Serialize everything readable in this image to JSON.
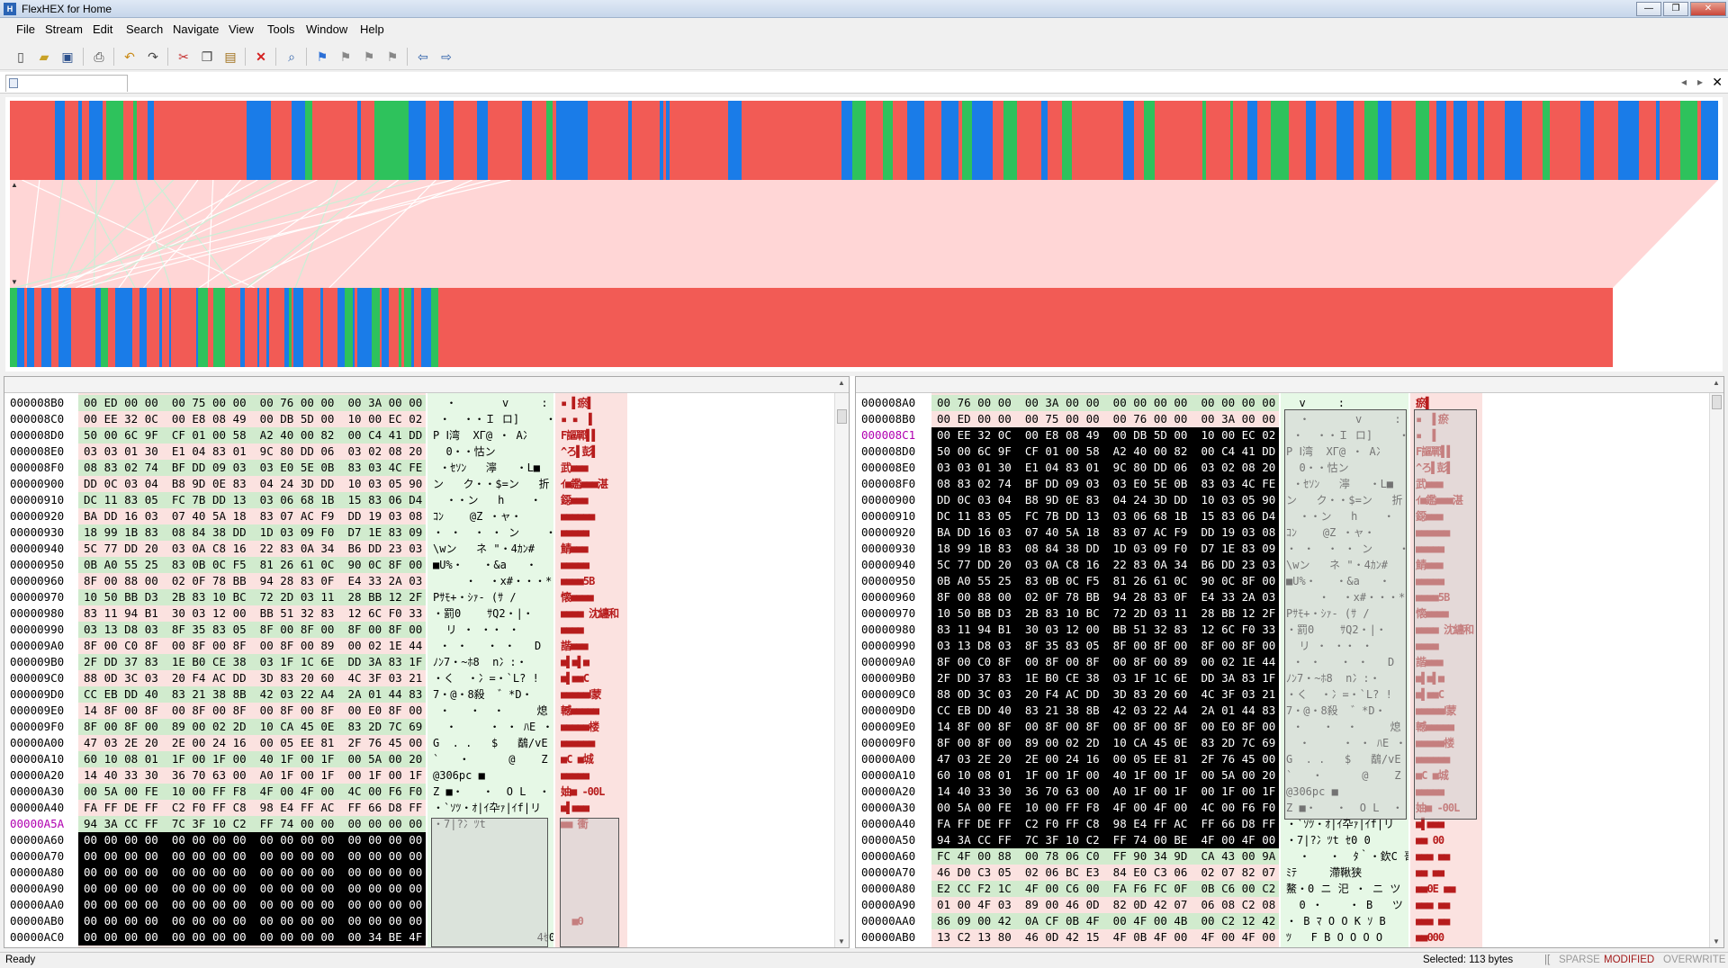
{
  "window": {
    "title": "FlexHEX for Home",
    "icon": "flexhex-app-icon",
    "controls": {
      "minimize": "—",
      "restore": "❐",
      "close": "✕"
    }
  },
  "menu": [
    "File",
    "Stream",
    "Edit",
    "Search",
    "Navigate",
    "View",
    "Tools",
    "Window",
    "Help"
  ],
  "toolbar": {
    "icons": [
      "new-icon",
      "open-icon",
      "save-icon",
      "print-icon",
      "undo-icon",
      "redo-icon",
      "cut-icon",
      "copy-icon",
      "paste-icon",
      "delete-icon",
      "find-icon",
      "bookmark-set-icon",
      "bookmark-prev-icon",
      "bookmark-next-icon",
      "bookmark-clear-icon",
      "back-icon",
      "forward-icon"
    ]
  },
  "doc": {
    "tab_icon": "document-icon",
    "nav_prev": "◂",
    "nav_next": "▸",
    "close": "✕"
  },
  "colors": {
    "map_red": "#f25b55",
    "map_blue": "#1a7ce8",
    "map_green": "#2ec25c",
    "hex_bg": "#fbe2e0",
    "text_bg": "#e6f8e6"
  },
  "left_pane": {
    "addresses": [
      "000008B0",
      "000008C0",
      "000008D0",
      "000008E0",
      "000008F0",
      "00000900",
      "00000910",
      "00000920",
      "00000930",
      "00000940",
      "00000950",
      "00000960",
      "00000970",
      "00000980",
      "00000990",
      "000009A0",
      "000009B0",
      "000009C0",
      "000009D0",
      "000009E0",
      "000009F0",
      "00000A00",
      "00000A10",
      "00000A20",
      "00000A30",
      "00000A40",
      "00000A5A",
      "00000A60",
      "00000A70",
      "00000A80",
      "00000A90",
      "00000AA0",
      "00000AB0",
      "00000AC0"
    ],
    "hex": [
      "00 ED 00 00  00 75 00 00  00 76 00 00  00 3A 00 00",
      "00 EE 32 0C  00 E8 08 49  00 DB 5D 00  10 00 EC 02",
      "50 00 6C 9F  CF 01 00 58  A2 40 00 82  00 C4 41 DD",
      "03 03 01 30  E1 04 83 01  9C 80 DD 06  03 02 08 20",
      "08 83 02 74  BF DD 09 03  03 E0 5E 0B  83 03 4C FE",
      "DD 0C 03 04  B8 9D 0E 83  04 24 3D DD  10 03 05 90",
      "DC 11 83 05  FC 7B DD 13  03 06 68 1B  15 83 06 D4",
      "BA DD 16 03  07 40 5A 18  83 07 AC F9  DD 19 03 08",
      "18 99 1B 83  08 84 38 DD  1D 03 09 F0  D7 1E 83 09",
      "5C 77 DD 20  03 0A C8 16  22 83 0A 34  B6 DD 23 03",
      "0B A0 55 25  83 0B 0C F5  81 26 61 0C  90 0C 8F 00",
      "8F 00 88 00  02 0F 78 BB  94 28 83 0F  E4 33 2A 03",
      "10 50 BB D3  2B 83 10 BC  72 2D 03 11  28 BB 12 2F",
      "83 11 94 B1  30 03 12 00  BB 51 32 83  12 6C F0 33",
      "03 13 D8 03  8F 35 83 05  8F 00 8F 00  8F 00 8F 00",
      "8F 00 C0 8F  00 8F 00 8F  00 8F 00 89  00 02 1E 44",
      "2F DD 37 83  1E B0 CE 38  03 1F 1C 6E  DD 3A 83 1F",
      "88 0D 3C 03  20 F4 AC DD  3D 83 20 60  4C 3F 03 21",
      "CC EB DD 40  83 21 38 8B  42 03 22 A4  2A 01 44 83",
      "14 8F 00 8F  00 8F 00 8F  00 8F 00 8F  00 E0 8F 00",
      "8F 00 8F 00  89 00 02 2D  10 CA 45 0E  83 2D 7C 69",
      "47 03 2E 20  2E 00 24 16  00 05 EE 81  2F 76 45 00",
      "60 10 08 01  1F 00 1F 00  40 1F 00 1F  00 5A 00 20",
      "14 40 33 30  36 70 63 00  A0 1F 00 1F  00 1F 00 1F",
      "00 5A 00 FE  10 00 FF F8  4F 00 4F 00  4C 00 F6 F0",
      "FA FF DE FF  C2 F0 FF C8  98 E4 FF AC  FF 66 D8 FF",
      "94 3A CC FF  7C 3F 10 C2  FF 74 00 00  00 00 00 00",
      "00 00 00 00  00 00 00 00  00 00 00 00  00 00 00 00",
      "00 00 00 00  00 00 00 00  00 00 00 00  00 00 00 00",
      "00 00 00 00  00 00 00 00  00 00 00 00  00 00 00 00",
      "00 00 00 00  00 00 00 00  00 00 00 00  00 00 00 00",
      "00 00 00 00  00 00 00 00  00 00 00 00  00 00 00 00",
      "00 00 00 00  00 00 00 00  00 00 00 00  00 00 00 00",
      "00 00 00 00  00 00 00 00  00 00 00 00  00 34 BE 4F 00"
    ],
    "text": [
      "  ・       v     :",
      " ・  ・・Ｉ ロ]    ・",
      "P Ⅰ湾  XΓ@ ・ A冫",
      "  0・・怙ン",
      " ・ｾｿﾝ   濘   ・L■",
      "ン   ク・・$=ン   折",
      "  ・・ン   h    ・",
      "ｺﾝ    @Z ・ャ・",
      "・ ・  ・ ・ ン    ・",
      "\\wン   ネ \"・4ｶﾝ#",
      "■U%・   ・&a   ・",
      "     ・  ・x#・・・*",
      "Pｻﾓ+・ｼｧ- (ｻ /",
      "・罰0    ｻQ2・|・",
      "  リ ・ ・・ ・",
      " ・ ・   ・ ・   D",
      "ﾉﾝ7・~ﾎ8  n冫:・",
      "・く  ・冫=・`L? !",
      "7・@・8殺  ゛*D・",
      " ・   ・  ・     熄",
      "  ・     ・ ・ ﾊE ・|i",
      "G  . .   $   鷸/vE",
      "`   ・      @    Z",
      "@306pc ■",
      "Z ■・   ・  O L  ・",
      "・`ｿﾂ・ｵ|ｲ卆ｧ|ｲf|リ",
      "・7|?冫ﾂt",
      "",
      "",
      "",
      "",
      "",
      "",
      "                4ｾ0"
    ],
    "jp": [
      "▪ ▌瘀▌",
      "▪ ▪  ▌",
      "F謳鄲▌▌",
      "^ろ▌彭▌",
      "武■■■",
      "ｲ■鑑■■■湛",
      "鐚■■■",
      "■■■■■■",
      "■■■■■",
      "鯖■■■",
      "■■■■■",
      "■■■■5B",
      "懐■■■■",
      "■■■■ 沈纏和",
      "■■■■",
      "諧■■■",
      "■▌■▌■",
      "■▌■■C",
      "■■■■■Ⅰ蒙",
      "轗■■■■■",
      "■■■■■楼",
      "■■■■■■",
      "■C ■城",
      "■■■■■",
      "妯■ -00L",
      "■▌■■■",
      "■■ 衝",
      "",
      " ",
      " ",
      " ",
      " ",
      "  ■0"
    ]
  },
  "right_pane": {
    "addresses": [
      "000008A0",
      "000008B0",
      "000008C1",
      "000008D0",
      "000008E0",
      "000008F0",
      "00000900",
      "00000910",
      "00000920",
      "00000930",
      "00000940",
      "00000950",
      "00000960",
      "00000970",
      "00000980",
      "00000990",
      "000009A0",
      "000009B0",
      "000009C0",
      "000009D0",
      "000009E0",
      "000009F0",
      "00000A00",
      "00000A10",
      "00000A20",
      "00000A30",
      "00000A40",
      "00000A50",
      "00000A60",
      "00000A70",
      "00000A80",
      "00000A90",
      "00000AA0",
      "00000AB0"
    ],
    "hex": [
      "00 76 00 00  00 3A 00 00  00 00 00 00  00 00 00 00",
      "00 ED 00 00  00 75 00 00  00 76 00 00  00 3A 00 00",
      "00 EE 32 0C  00 E8 08 49  00 DB 5D 00  10 00 EC 02",
      "50 00 6C 9F  CF 01 00 58  A2 40 00 82  00 C4 41 DD",
      "03 03 01 30  E1 04 83 01  9C 80 DD 06  03 02 08 20",
      "08 83 02 74  BF DD 09 03  03 E0 5E 0B  83 03 4C FE",
      "DD 0C 03 04  B8 9D 0E 83  04 24 3D DD  10 03 05 90",
      "DC 11 83 05  FC 7B DD 13  03 06 68 1B  15 83 06 D4",
      "BA DD 16 03  07 40 5A 18  83 07 AC F9  DD 19 03 08",
      "18 99 1B 83  08 84 38 DD  1D 03 09 F0  D7 1E 83 09",
      "5C 77 DD 20  03 0A C8 16  22 83 0A 34  B6 DD 23 03",
      "0B A0 55 25  83 0B 0C F5  81 26 61 0C  90 0C 8F 00",
      "8F 00 88 00  02 0F 78 BB  94 28 83 0F  E4 33 2A 03",
      "10 50 BB D3  2B 83 10 BC  72 2D 03 11  28 BB 12 2F",
      "83 11 94 B1  30 03 12 00  BB 51 32 83  12 6C F0 33",
      "03 13 D8 03  8F 35 83 05  8F 00 8F 00  8F 00 8F 00",
      "8F 00 C0 8F  00 8F 00 8F  00 8F 00 89  00 02 1E 44",
      "2F DD 37 83  1E B0 CE 38  03 1F 1C 6E  DD 3A 83 1F",
      "88 0D 3C 03  20 F4 AC DD  3D 83 20 60  4C 3F 03 21",
      "CC EB DD 40  83 21 38 8B  42 03 22 A4  2A 01 44 83",
      "14 8F 00 8F  00 8F 00 8F  00 8F 00 8F  00 E0 8F 00",
      "8F 00 8F 00  89 00 02 2D  10 CA 45 0E  83 2D 7C 69",
      "47 03 2E 20  2E 00 24 16  00 05 EE 81  2F 76 45 00",
      "60 10 08 01  1F 00 1F 00  40 1F 00 1F  00 5A 00 20",
      "14 40 33 30  36 70 63 00  A0 1F 00 1F  00 1F 00 1F",
      "00 5A 00 FE  10 00 FF F8  4F 00 4F 00  4C 00 F6 F0",
      "FA FF DE FF  C2 F0 FF C8  98 E4 FF AC  FF 66 D8 FF",
      "94 3A CC FF  7C 3F 10 C2  FF 74 00 BE  4F 00 4F 00",
      "FC 4F 00 88  00 78 06 C0  FF 90 34 9D  CA 43 00 9A",
      "46 D0 C3 05  02 06 BC E3  84 E0 C3 06  02 07 82 07",
      "E2 CC F2 1C  4F 00 C6 00  FA F6 FC 0F  0B C6 00 C2",
      "01 00 4F 03  89 00 46 0D  82 0D 42 07  06 08 C2 08",
      "86 09 00 42  0A CF 0B 4F  00 4F 00 4B  00 C2 12 42",
      "13 C2 13 80  46 0D 42 15  4F 0B 4F 00  4F 00 4F 00"
    ],
    "text": [
      "  v     :",
      "  ・       v     :",
      " ・  ・・Ｉ ロ]    ・",
      "P Ⅰ湾  XΓ@ ・ A冫",
      "  0・・怙ン",
      " ・ｾｿﾝ   濘   ・L■",
      "ン   ク・・$=ン   折",
      "  ・・ン   h    ・",
      "ｺﾝ    @Z ・ャ・",
      "・ ・  ・ ・ ン    ・",
      "\\wン   ネ \"・4ｶﾝ#",
      "■U%・   ・&a   ・",
      "     ・  ・x#・・・*",
      "Pｻﾓ+・ｼｧ- (ｻ /",
      "・罰0    ｻQ2・|・",
      "  リ ・ ・・ ・",
      " ・ ・   ・ ・   D",
      "ﾉﾝ7・~ﾎ8  n冫:・",
      "・く  ・冫=・`L? !",
      "7・@・8殺  ゛*D・",
      " ・   ・  ・     熄",
      "  ・     ・ ・ ﾊE ・|i",
      "G  . .   $   鷸/vE",
      "`   ・      @    Z",
      "@306pc ■",
      "Z ■・   ・  O L  ・",
      "・`ｿﾂ・ｵ|ｲ卆ｧ|ｲf|リ",
      "・7|?冫ﾂt ｾ0 0",
      "  ・   ・  ﾀ｀・欽C 哥",
      "ﾐﾃ     滯鞦狭",
      "鰲・0 ニ 汜 ・ ニ ツ",
      "  0 ・    ・ B   ツ",
      "・ B ﾏ O O K ｿ B",
      "ﾂ   F B O O O O"
    ],
    "jp": [
      "瘀▌",
      "▪  ▌瘀",
      "▪  ▌",
      "F謳鄲▌▌",
      "^ろ▌彭▌",
      "武■■■",
      "ｲ■鑑■■■湛",
      "鐚■■■",
      "■■■■■■",
      "■■■■■",
      "鯖■■■",
      "■■■■■",
      "■■■■5B",
      "懐■■■■",
      "■■■■ 沈纏和",
      "■■■■",
      "諧■■■",
      "■▌■▌■",
      "■▌■■C",
      "■■■■■Ⅰ蒙",
      "轗■■■■■",
      "■■■■■楼",
      "■■■■■■",
      "■C ■城",
      "■■■■■",
      "妯■ -00L",
      "■▌■■■",
      "■■ 00",
      "■■■ ■■",
      "■■ ■■",
      "■■0E ■■",
      "■■■ ■■",
      "■■■ ■■",
      "■■000"
    ]
  },
  "status": {
    "ready": "Ready",
    "selected": "Selected: 113 bytes",
    "sparse": "SPARSE",
    "modified": "MODIFIED",
    "overwrite": "OVERWRITE"
  }
}
